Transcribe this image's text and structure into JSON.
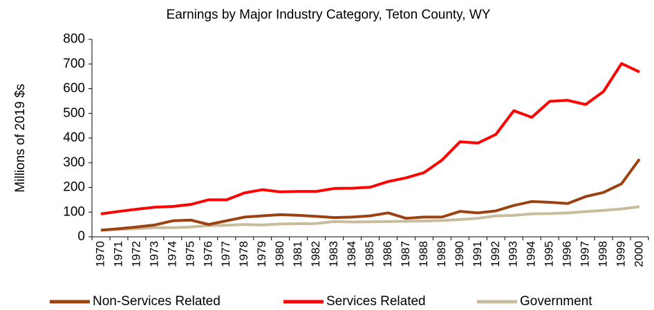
{
  "chart_data": {
    "type": "line",
    "title": "Earnings by Major Industry Category, Teton County, WY",
    "y_label": "Millions of 2019 $s",
    "categories": [
      "1970",
      "1971",
      "1972",
      "1973",
      "1974",
      "1975",
      "1976",
      "1977",
      "1978",
      "1979",
      "1980",
      "1981",
      "1982",
      "1983",
      "1984",
      "1985",
      "1986",
      "1987",
      "1988",
      "1989",
      "1990",
      "1991",
      "1992",
      "1993",
      "1994",
      "1995",
      "1996",
      "1997",
      "1998",
      "1999",
      "2000"
    ],
    "series": [
      {
        "name": "Non-Services Related",
        "color": "#9c4212",
        "values": [
          27,
          33,
          40,
          48,
          65,
          68,
          50,
          65,
          80,
          85,
          90,
          87,
          83,
          78,
          80,
          85,
          97,
          75,
          80,
          80,
          103,
          97,
          105,
          127,
          143,
          140,
          135,
          163,
          180,
          215,
          315
        ]
      },
      {
        "name": "Services Related",
        "color": "#ff0000",
        "values": [
          93,
          103,
          112,
          120,
          123,
          131,
          150,
          150,
          178,
          191,
          182,
          184,
          184,
          196,
          197,
          201,
          224,
          239,
          260,
          311,
          385,
          380,
          415,
          511,
          484,
          549,
          553,
          536,
          589,
          702,
          668
        ]
      },
      {
        "name": "Government",
        "color": "#c8bc9c",
        "values": [
          27,
          30,
          33,
          37,
          37,
          40,
          45,
          47,
          50,
          48,
          52,
          53,
          54,
          62,
          60,
          61,
          62,
          63,
          64,
          66,
          70,
          75,
          85,
          87,
          93,
          94,
          97,
          102,
          107,
          113,
          122
        ]
      }
    ],
    "ylim": [
      0,
      800
    ],
    "yticks": [
      0,
      100,
      200,
      300,
      400,
      500,
      600,
      700,
      800
    ],
    "legend": "bottom"
  }
}
